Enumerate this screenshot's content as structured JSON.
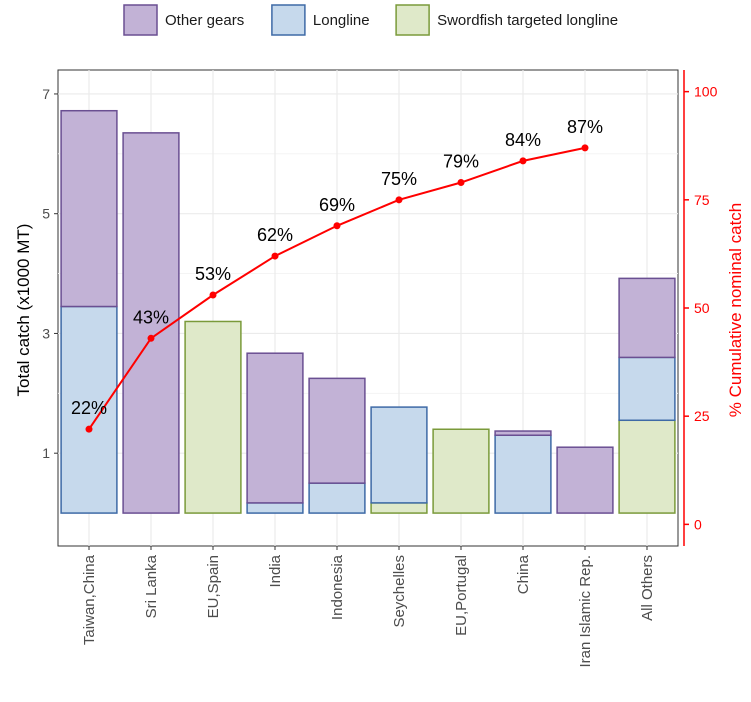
{
  "chart_data": {
    "type": "bar",
    "stacked": true,
    "legend_position": "top",
    "grid": true,
    "categories": [
      "Taiwan,China",
      "Sri Lanka",
      "EU,Spain",
      "India",
      "Indonesia",
      "Seychelles",
      "EU,Portugal",
      "China",
      "Iran Islamic Rep.",
      "All Others"
    ],
    "series": [
      {
        "name": "Swordfish targeted longline",
        "values": [
          0,
          0,
          3.2,
          0,
          0,
          0.17,
          1.4,
          0,
          0,
          1.55
        ],
        "color": "#dfe9c9",
        "stroke": "#7a9a3a"
      },
      {
        "name": "Longline",
        "values": [
          3.45,
          0,
          0,
          0.17,
          0.5,
          1.6,
          0,
          1.3,
          0,
          1.05
        ],
        "color": "#c6d9ec",
        "stroke": "#3e6aa6"
      },
      {
        "name": "Other gears",
        "values": [
          3.27,
          6.35,
          0,
          2.5,
          1.75,
          0,
          0,
          0.07,
          1.1,
          1.32
        ],
        "color": "#c2b2d6",
        "stroke": "#6a4f92"
      }
    ],
    "cumulative_pct": {
      "values": [
        22,
        43,
        53,
        62,
        69,
        75,
        79,
        84,
        87
      ],
      "labels": [
        "22%",
        "43%",
        "53%",
        "62%",
        "69%",
        "75%",
        "79%",
        "84%",
        "87%"
      ],
      "color": "#ff0000"
    },
    "ylabel": "Total catch (x1000 MT)",
    "y2label": "% Cumulative nominal catch",
    "ylim": [
      -0.55,
      7.4
    ],
    "y2lim": [
      -5,
      105
    ],
    "yticks": [
      1,
      3,
      5,
      7
    ],
    "yticks_minor": [
      2,
      4,
      6
    ],
    "y2ticks": [
      0,
      25,
      50,
      75,
      100
    ]
  },
  "legend": {
    "items": [
      {
        "label": "Other gears",
        "fill": "#c2b2d6",
        "stroke": "#6a4f92"
      },
      {
        "label": "Longline",
        "fill": "#c6d9ec",
        "stroke": "#3e6aa6"
      },
      {
        "label": "Swordfish targeted longline",
        "fill": "#dfe9c9",
        "stroke": "#7a9a3a"
      }
    ]
  }
}
